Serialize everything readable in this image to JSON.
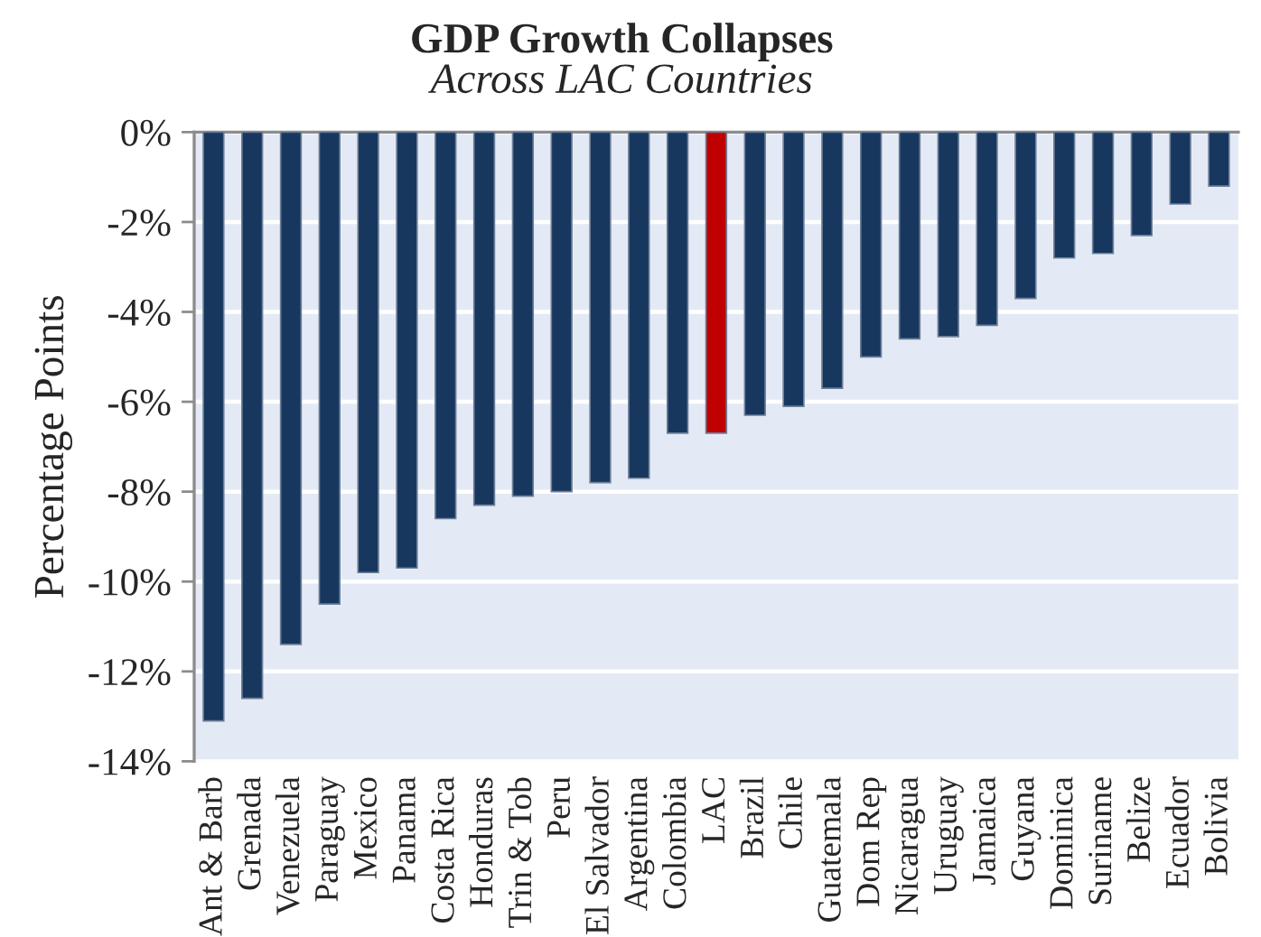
{
  "chart_data": {
    "type": "bar",
    "title": "GDP Growth Collapses",
    "subtitle": "Across LAC Countries",
    "ylabel": "Percentage Points",
    "categories": [
      "Ant & Barb",
      "Grenada",
      "Venezuela",
      "Paraguay",
      "Mexico",
      "Panama",
      "Costa Rica",
      "Honduras",
      "Trin & Tob",
      "Peru",
      "El Salvador",
      "Argentina",
      "Colombia",
      "LAC",
      "Brazil",
      "Chile",
      "Guatemala",
      "Dom Rep",
      "Nicaragua",
      "Uruguay",
      "Jamaica",
      "Guyana",
      "Dominica",
      "Suriname",
      "Belize",
      "Ecuador",
      "Bolivia"
    ],
    "values": [
      -13.1,
      -12.6,
      -11.4,
      -10.5,
      -9.8,
      -9.7,
      -8.6,
      -8.3,
      -8.1,
      -8.0,
      -7.8,
      -7.7,
      -6.7,
      -6.7,
      -6.3,
      -6.1,
      -5.7,
      -5.0,
      -4.6,
      -4.55,
      -4.3,
      -3.7,
      -2.8,
      -2.7,
      -2.3,
      -1.6,
      -1.2
    ],
    "colors": [
      "#17375e",
      "#17375e",
      "#17375e",
      "#17375e",
      "#17375e",
      "#17375e",
      "#17375e",
      "#17375e",
      "#17375e",
      "#17375e",
      "#17375e",
      "#17375e",
      "#17375e",
      "#c00000",
      "#17375e",
      "#17375e",
      "#17375e",
      "#17375e",
      "#17375e",
      "#17375e",
      "#17375e",
      "#17375e",
      "#17375e",
      "#17375e",
      "#17375e",
      "#17375e",
      "#17375e"
    ],
    "ylim": [
      -14,
      0
    ],
    "yticks": [
      {
        "value": 0,
        "label": "0%"
      },
      {
        "value": -2,
        "label": "-2%"
      },
      {
        "value": -4,
        "label": "-4%"
      },
      {
        "value": -6,
        "label": "-6%"
      },
      {
        "value": -8,
        "label": "-8%"
      },
      {
        "value": -10,
        "label": "-10%"
      },
      {
        "value": -12,
        "label": "-12%"
      },
      {
        "value": -14,
        "label": "-14%"
      }
    ],
    "grid": "y",
    "legend": false
  }
}
